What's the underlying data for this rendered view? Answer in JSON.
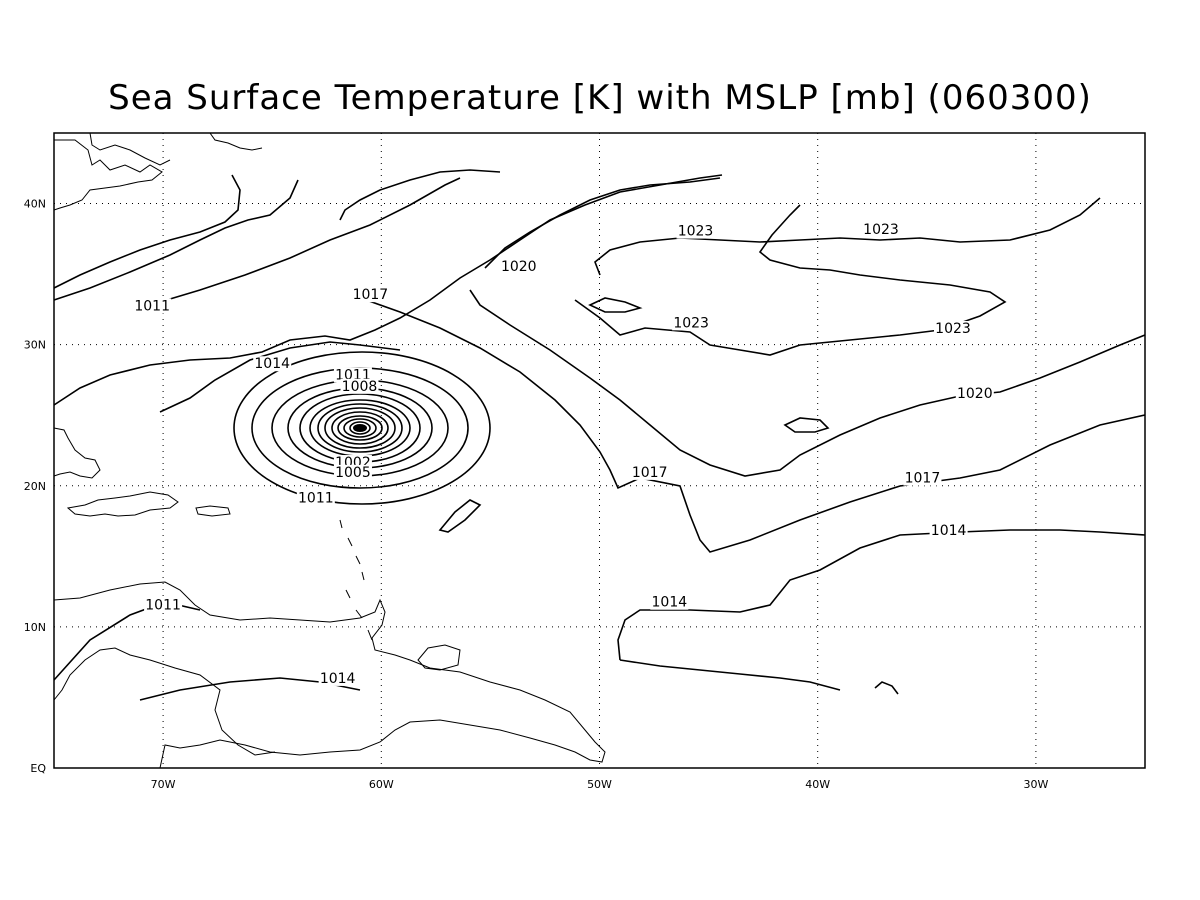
{
  "title": "Sea Surface Temperature [K] with MSLP [mb] (060300)",
  "axes": {
    "x_ticks": [
      "70W",
      "60W",
      "50W",
      "40W",
      "30W"
    ],
    "y_ticks": [
      "EQ",
      "10N",
      "20N",
      "30N",
      "40N"
    ],
    "lon_range": [
      -75,
      -25
    ],
    "lat_range": [
      0,
      45
    ],
    "grid": "dotted"
  },
  "contour_labels": [
    {
      "text": "1011",
      "lon": -70.5,
      "lat": 32.5
    },
    {
      "text": "1014",
      "lon": -65.0,
      "lat": 28.4
    },
    {
      "text": "1011",
      "lon": -61.3,
      "lat": 27.6
    },
    {
      "text": "1008",
      "lon": -61.0,
      "lat": 26.8
    },
    {
      "text": "1002",
      "lon": -61.3,
      "lat": 21.4
    },
    {
      "text": "1005",
      "lon": -61.3,
      "lat": 20.7
    },
    {
      "text": "1011",
      "lon": -63.0,
      "lat": 18.9
    },
    {
      "text": "1017",
      "lon": -60.5,
      "lat": 33.3
    },
    {
      "text": "1020",
      "lon": -53.7,
      "lat": 35.3
    },
    {
      "text": "1023",
      "lon": -45.6,
      "lat": 37.8
    },
    {
      "text": "1023",
      "lon": -37.1,
      "lat": 37.9
    },
    {
      "text": "1023",
      "lon": -45.8,
      "lat": 31.3
    },
    {
      "text": "1023",
      "lon": -33.8,
      "lat": 30.9
    },
    {
      "text": "1020",
      "lon": -32.8,
      "lat": 26.3
    },
    {
      "text": "1017",
      "lon": -47.7,
      "lat": 20.7
    },
    {
      "text": "1017",
      "lon": -35.2,
      "lat": 20.3
    },
    {
      "text": "1014",
      "lon": -34.0,
      "lat": 16.6
    },
    {
      "text": "1014",
      "lon": -46.8,
      "lat": 11.5
    },
    {
      "text": "1011",
      "lon": -70.0,
      "lat": 11.3
    },
    {
      "text": "1014",
      "lon": -62.0,
      "lat": 6.1
    }
  ],
  "low_center": {
    "lon": -61.5,
    "lat": 24.0
  }
}
